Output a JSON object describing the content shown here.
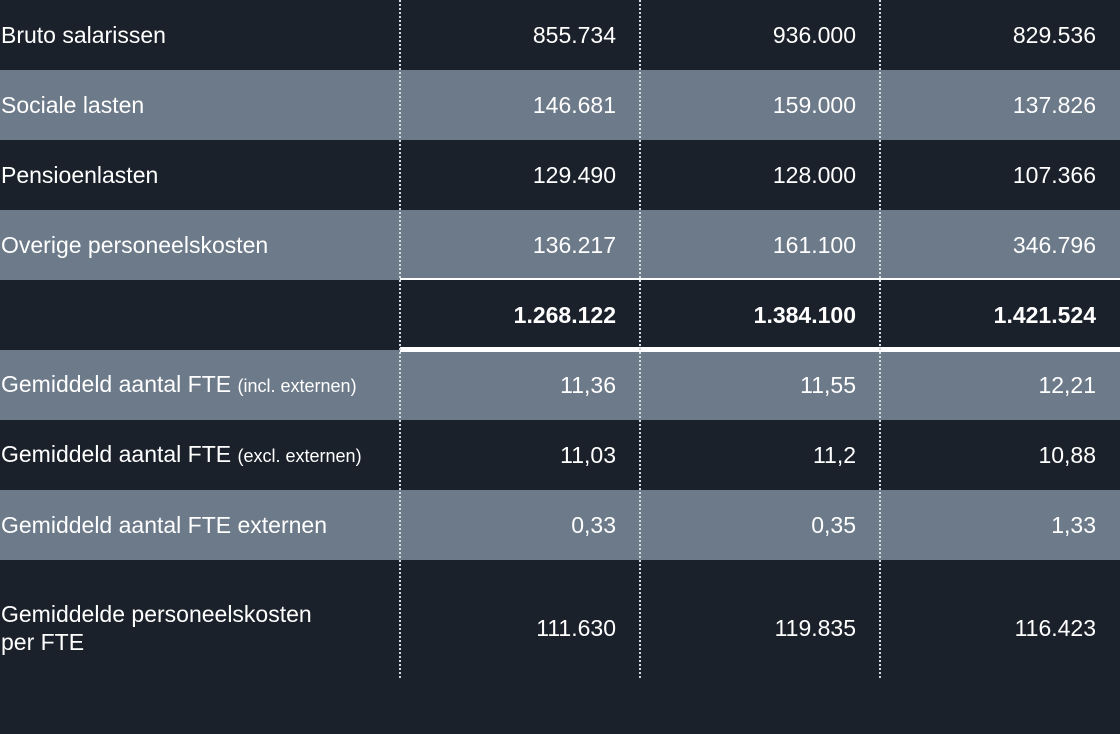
{
  "rows": [
    {
      "label": "Bruto salarissen",
      "note": "",
      "values": [
        "855.734",
        "936.000",
        "829.536"
      ]
    },
    {
      "label": "Sociale lasten",
      "note": "",
      "values": [
        "146.681",
        "159.000",
        "137.826"
      ]
    },
    {
      "label": "Pensioenlasten",
      "note": "",
      "values": [
        "129.490",
        "128.000",
        "107.366"
      ]
    },
    {
      "label": "Overige personeelskosten",
      "note": "",
      "values": [
        "136.217",
        "161.100",
        "346.796"
      ]
    },
    {
      "label": "",
      "note": "",
      "values": [
        "1.268.122",
        "1.384.100",
        "1.421.524"
      ]
    },
    {
      "label": "Gemiddeld aantal FTE ",
      "note": "(incl. externen)",
      "values": [
        "11,36",
        "11,55",
        "12,21"
      ]
    },
    {
      "label": "Gemiddeld aantal FTE ",
      "note": "(excl. externen)",
      "values": [
        "11,03",
        "11,2",
        "10,88"
      ]
    },
    {
      "label": "Gemiddeld aantal FTE externen",
      "note": "",
      "values": [
        "0,33",
        "0,35",
        "1,33"
      ]
    },
    {
      "label": "Gemiddelde personeelskosten per FTE",
      "note": "",
      "values": [
        "111.630",
        "119.835",
        "116.423"
      ]
    }
  ],
  "colors": {
    "dark_row": "#1b212a",
    "light_row": "#6c7a89",
    "text": "#ffffff"
  }
}
